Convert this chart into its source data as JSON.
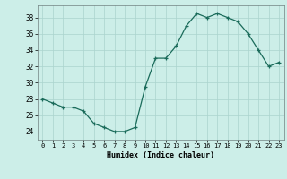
{
  "x": [
    0,
    1,
    2,
    3,
    4,
    5,
    6,
    7,
    8,
    9,
    10,
    11,
    12,
    13,
    14,
    15,
    16,
    17,
    18,
    19,
    20,
    21,
    22,
    23
  ],
  "y": [
    28,
    27.5,
    27,
    27,
    26.5,
    25,
    24.5,
    24,
    24,
    24.5,
    29.5,
    33,
    33,
    34.5,
    37,
    38.5,
    38,
    38.5,
    38,
    37.5,
    36,
    34,
    32,
    32.5
  ],
  "title": "",
  "xlabel": "Humidex (Indice chaleur)",
  "xlim": [
    -0.5,
    23.5
  ],
  "ylim": [
    23.0,
    39.5
  ],
  "yticks": [
    24,
    26,
    28,
    30,
    32,
    34,
    36,
    38
  ],
  "xticks": [
    0,
    1,
    2,
    3,
    4,
    5,
    6,
    7,
    8,
    9,
    10,
    11,
    12,
    13,
    14,
    15,
    16,
    17,
    18,
    19,
    20,
    21,
    22,
    23
  ],
  "bg_color": "#cceee8",
  "grid_color": "#aad4ce",
  "line_color": "#1a6b5a",
  "marker_color": "#1a6b5a"
}
